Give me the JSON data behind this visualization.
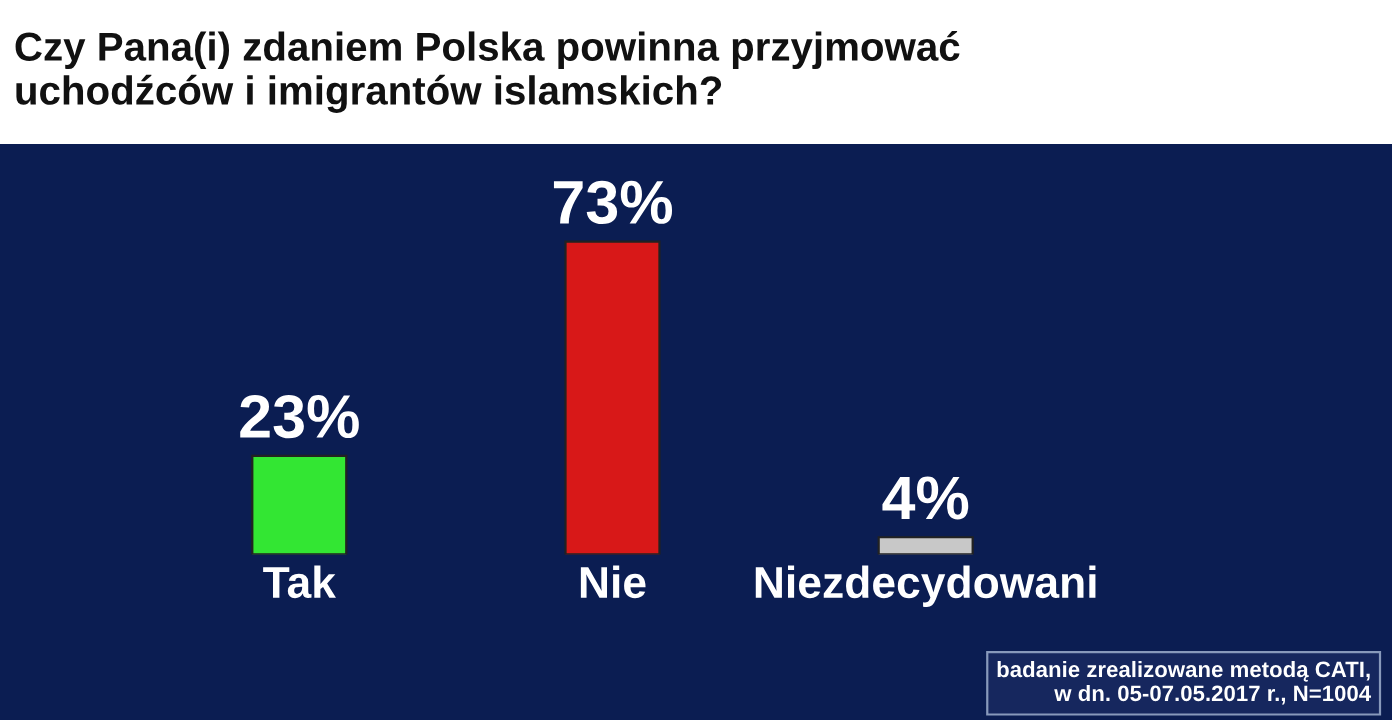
{
  "chart_data": {
    "type": "bar",
    "title": "Czy Pana(i) zdaniem Polska powinna przyjmować\nuchodźców i imigrantów islamskich?",
    "categories": [
      "Tak",
      "Nie",
      "Niezdecydowani"
    ],
    "values": [
      23,
      73,
      4
    ],
    "colors": [
      "#33e633",
      "#d81818",
      "#c8c8c8"
    ],
    "value_labels": [
      "23%",
      "73%",
      "4%"
    ],
    "annotations": [
      "badanie zrealizowane metodą CATI,\nw dn. 05-07.05.2017 r., N=1004"
    ]
  }
}
